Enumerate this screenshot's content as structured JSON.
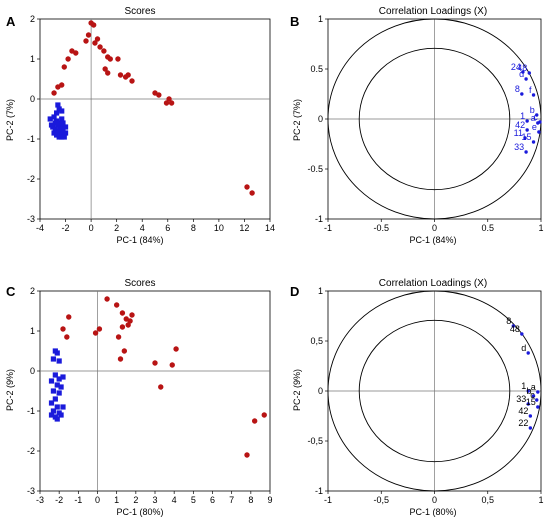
{
  "chart_data": [
    {
      "panel": "A",
      "type": "scatter",
      "title": "Scores",
      "xlabel": "PC-1 (84%)",
      "ylabel": "PC-2 (7%)",
      "xlim": [
        -4,
        14
      ],
      "ylim": [
        -3,
        2
      ],
      "xticks": [
        -4,
        -2,
        0,
        2,
        4,
        6,
        8,
        10,
        12,
        14
      ],
      "yticks": [
        -3,
        -2,
        -1,
        0,
        1,
        2
      ],
      "xtick_labels": [
        "-4",
        "-2",
        "0",
        "2",
        "4",
        "6",
        "8",
        "10",
        "12",
        "14"
      ],
      "ytick_labels": [
        "-3",
        "-2",
        "-1",
        "0",
        "1",
        "2"
      ],
      "series": [
        {
          "color": "#b81414",
          "marker": "circle",
          "points": [
            [
              0.0,
              1.9
            ],
            [
              0.2,
              1.85
            ],
            [
              -0.2,
              1.6
            ],
            [
              0.5,
              1.5
            ],
            [
              0.3,
              1.4
            ],
            [
              0.7,
              1.3
            ],
            [
              -0.4,
              1.45
            ],
            [
              1.0,
              1.2
            ],
            [
              1.3,
              1.05
            ],
            [
              1.5,
              1.0
            ],
            [
              -1.5,
              1.2
            ],
            [
              -1.2,
              1.15
            ],
            [
              -1.8,
              1.0
            ],
            [
              -2.1,
              0.8
            ],
            [
              1.1,
              0.75
            ],
            [
              1.3,
              0.65
            ],
            [
              2.3,
              0.6
            ],
            [
              2.7,
              0.55
            ],
            [
              2.9,
              0.6
            ],
            [
              3.2,
              0.45
            ],
            [
              2.1,
              1.0
            ],
            [
              -2.6,
              0.3
            ],
            [
              -2.9,
              0.15
            ],
            [
              5.0,
              0.15
            ],
            [
              5.3,
              0.1
            ],
            [
              6.1,
              0.0
            ],
            [
              6.3,
              -0.1
            ],
            [
              5.9,
              -0.1
            ],
            [
              12.2,
              -2.2
            ],
            [
              12.6,
              -2.35
            ],
            [
              -2.3,
              0.35
            ]
          ]
        },
        {
          "color": "#1a1adb",
          "marker": "square",
          "points": [
            [
              -2.9,
              -0.45
            ],
            [
              -2.7,
              -0.55
            ],
            [
              -2.5,
              -0.6
            ],
            [
              -2.3,
              -0.5
            ],
            [
              -3.2,
              -0.5
            ],
            [
              -3.0,
              -0.7
            ],
            [
              -2.8,
              -0.75
            ],
            [
              -2.6,
              -0.8
            ],
            [
              -2.4,
              -0.85
            ],
            [
              -2.2,
              -0.9
            ],
            [
              -2.9,
              -0.85
            ],
            [
              -2.7,
              -0.9
            ],
            [
              -2.5,
              -0.95
            ],
            [
              -2.3,
              -0.95
            ],
            [
              -2.1,
              -0.95
            ],
            [
              -2.0,
              -0.85
            ],
            [
              -2.8,
              -0.6
            ],
            [
              -2.6,
              -0.65
            ],
            [
              -2.4,
              -0.7
            ],
            [
              -2.2,
              -0.75
            ],
            [
              -2.6,
              -0.15
            ],
            [
              -2.5,
              -0.25
            ],
            [
              -2.3,
              -0.3
            ],
            [
              -2.7,
              -0.35
            ],
            [
              -3.1,
              -0.65
            ],
            [
              -2.0,
              -0.7
            ],
            [
              -2.2,
              -0.6
            ]
          ]
        }
      ]
    },
    {
      "panel": "B",
      "type": "scatter",
      "title": "Correlation Loadings (X)",
      "xlabel": "PC-1 (84%)",
      "ylabel": "PC-2 (7%)",
      "xlim": [
        -1,
        1
      ],
      "ylim": [
        -1,
        1
      ],
      "xticks": [
        -1,
        -0.5,
        0,
        0.5,
        1
      ],
      "yticks": [
        -1,
        -0.5,
        0,
        0.5,
        1
      ],
      "xtick_labels": [
        "-1",
        "-0.5",
        "0",
        "0.5",
        "1"
      ],
      "ytick_labels": [
        "-1",
        "-0.5",
        "0",
        "0.5",
        "1"
      ],
      "circles": [
        1.0,
        0.707
      ],
      "label_color": "#1a1adb",
      "points": [
        {
          "label": "24",
          "x": 0.83,
          "y": 0.47
        },
        {
          "label": "48",
          "x": 0.89,
          "y": 0.46
        },
        {
          "label": "d",
          "x": 0.86,
          "y": 0.4
        },
        {
          "label": "8",
          "x": 0.82,
          "y": 0.25
        },
        {
          "label": "f",
          "x": 0.93,
          "y": 0.24
        },
        {
          "label": "b",
          "x": 0.96,
          "y": 0.04
        },
        {
          "label": "1",
          "x": 0.87,
          "y": -0.02
        },
        {
          "label": "a",
          "x": 0.97,
          "y": -0.04
        },
        {
          "label": "c",
          "x": 0.99,
          "y": -0.03
        },
        {
          "label": "42",
          "x": 0.87,
          "y": -0.11
        },
        {
          "label": "11",
          "x": 0.85,
          "y": -0.19
        },
        {
          "label": "e",
          "x": 0.98,
          "y": -0.13
        },
        {
          "label": "15",
          "x": 0.93,
          "y": -0.23
        },
        {
          "label": "33",
          "x": 0.86,
          "y": -0.33
        }
      ]
    },
    {
      "panel": "C",
      "type": "scatter",
      "title": "Scores",
      "xlabel": "PC-1 (80%)",
      "ylabel": "PC-2 (9%)",
      "xlim": [
        -3,
        9
      ],
      "ylim": [
        -3,
        2
      ],
      "xticks": [
        -3,
        -2,
        -1,
        0,
        1,
        2,
        3,
        4,
        5,
        6,
        7,
        8,
        9
      ],
      "yticks": [
        -3,
        -2,
        -1,
        0,
        1,
        2
      ],
      "xtick_labels": [
        "-3",
        "-2",
        "-1",
        "0",
        "1",
        "2",
        "3",
        "4",
        "5",
        "6",
        "7",
        "8",
        "9"
      ],
      "ytick_labels": [
        "-3",
        "-2",
        "-1",
        "0",
        "1",
        "2"
      ],
      "series": [
        {
          "color": "#b81414",
          "marker": "circle",
          "points": [
            [
              0.5,
              1.8
            ],
            [
              0.1,
              1.05
            ],
            [
              -0.1,
              0.95
            ],
            [
              -1.5,
              1.35
            ],
            [
              -1.8,
              1.05
            ],
            [
              -1.6,
              0.85
            ],
            [
              1.0,
              1.65
            ],
            [
              1.3,
              1.45
            ],
            [
              1.5,
              1.3
            ],
            [
              1.7,
              1.25
            ],
            [
              1.3,
              1.1
            ],
            [
              1.6,
              1.15
            ],
            [
              1.8,
              1.4
            ],
            [
              1.1,
              0.85
            ],
            [
              1.4,
              0.5
            ],
            [
              1.2,
              0.3
            ],
            [
              3.0,
              0.2
            ],
            [
              3.3,
              -0.4
            ],
            [
              3.9,
              0.15
            ],
            [
              4.1,
              0.55
            ],
            [
              7.8,
              -2.1
            ],
            [
              8.2,
              -1.25
            ],
            [
              8.7,
              -1.1
            ]
          ]
        },
        {
          "color": "#1a1adb",
          "marker": "square",
          "points": [
            [
              -2.2,
              0.5
            ],
            [
              -2.1,
              0.45
            ],
            [
              -2.3,
              0.3
            ],
            [
              -2.0,
              0.25
            ],
            [
              -2.2,
              -0.1
            ],
            [
              -2.0,
              -0.2
            ],
            [
              -1.8,
              -0.15
            ],
            [
              -2.4,
              -0.25
            ],
            [
              -2.1,
              -0.35
            ],
            [
              -1.9,
              -0.4
            ],
            [
              -2.3,
              -0.5
            ],
            [
              -2.0,
              -0.55
            ],
            [
              -2.2,
              -0.7
            ],
            [
              -2.4,
              -0.8
            ],
            [
              -2.1,
              -0.9
            ],
            [
              -2.3,
              -1.0
            ],
            [
              -2.0,
              -1.05
            ],
            [
              -2.2,
              -1.15
            ],
            [
              -2.4,
              -1.1
            ],
            [
              -1.9,
              -1.1
            ],
            [
              -1.8,
              -0.9
            ],
            [
              -2.1,
              -1.2
            ]
          ]
        }
      ]
    },
    {
      "panel": "D",
      "type": "scatter",
      "title": "Correlation Loadings (X)",
      "xlabel": "PC-1 (80%)",
      "ylabel": "PC-2 (9%)",
      "xlim": [
        -1,
        1
      ],
      "ylim": [
        -1,
        1
      ],
      "xticks": [
        -1,
        -0.5,
        0,
        0.5,
        1
      ],
      "yticks": [
        -1,
        -0.5,
        0,
        0.5,
        1
      ],
      "xtick_labels": [
        "-1",
        "-0,5",
        "0",
        "0,5",
        "1"
      ],
      "ytick_labels": [
        "-1",
        "-0,5",
        "0",
        "0,5",
        "1"
      ],
      "circles": [
        1.0,
        0.707
      ],
      "label_color": "#000000",
      "points": [
        {
          "label": "8",
          "x": 0.74,
          "y": 0.65
        },
        {
          "label": "48",
          "x": 0.82,
          "y": 0.57
        },
        {
          "label": "d",
          "x": 0.88,
          "y": 0.38
        },
        {
          "label": "1",
          "x": 0.88,
          "y": 0.0
        },
        {
          "label": "a",
          "x": 0.97,
          "y": -0.01
        },
        {
          "label": "b",
          "x": 0.93,
          "y": -0.05
        },
        {
          "label": "33",
          "x": 0.88,
          "y": -0.13
        },
        {
          "label": "c",
          "x": 0.96,
          "y": -0.09
        },
        {
          "label": "15",
          "x": 0.97,
          "y": -0.16
        },
        {
          "label": "42",
          "x": 0.9,
          "y": -0.25
        },
        {
          "label": "22",
          "x": 0.9,
          "y": -0.37
        }
      ]
    }
  ]
}
